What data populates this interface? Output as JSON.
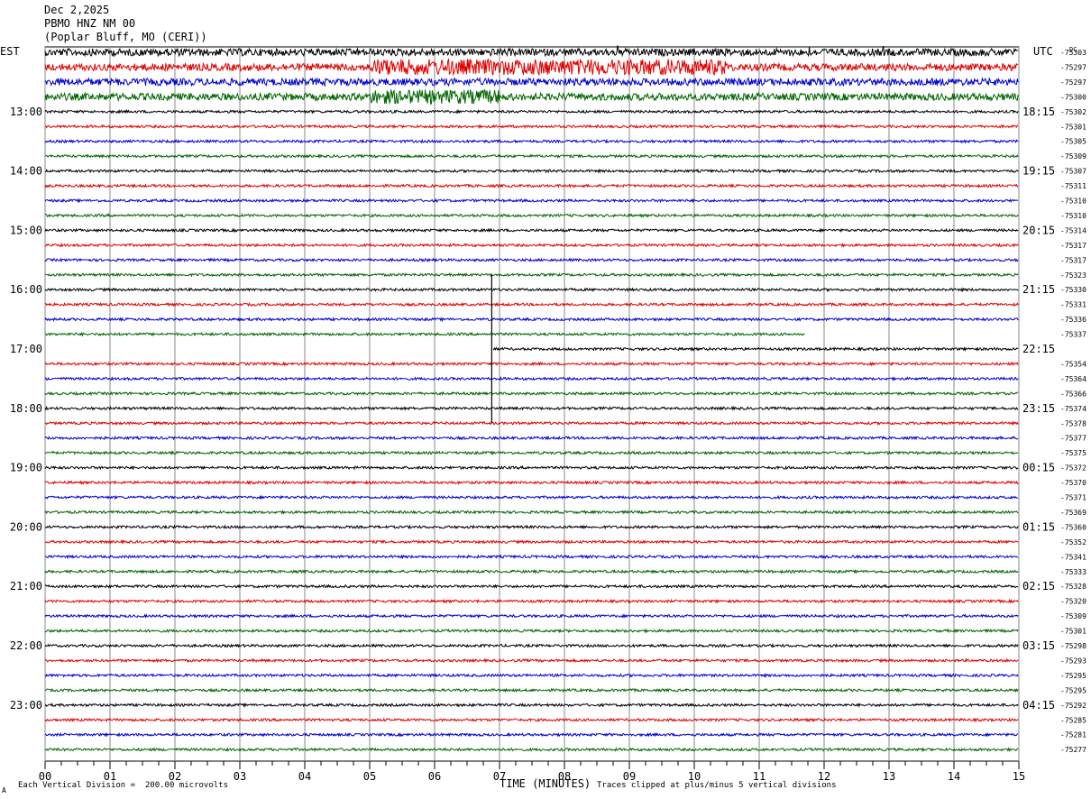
{
  "header": {
    "date": "Dec 2,2025",
    "station": "PBMO HNZ NM 00",
    "location": "(Poplar Bluff, MO (CERI))"
  },
  "labels": {
    "left_tz": "EST",
    "right_tz": "UTC",
    "dc": "DC"
  },
  "footer": {
    "scale": "Each Vertical Division =  200.00 microvolts",
    "clip": "Traces clipped at plus/minus 5 vertical divisions",
    "corner_mark": "A"
  },
  "colors": [
    "#000000",
    "#e00000",
    "#0000d0",
    "#006400"
  ],
  "chart_data": {
    "type": "line",
    "xlabel": "TIME (MINUTES)",
    "xlim": [
      0,
      15
    ],
    "x_ticks": [
      "00",
      "01",
      "02",
      "03",
      "04",
      "05",
      "06",
      "07",
      "08",
      "09",
      "10",
      "11",
      "12",
      "13",
      "14",
      "15"
    ],
    "left_hour_labels": [
      "13:00",
      "14:00",
      "15:00",
      "16:00",
      "17:00",
      "18:00",
      "19:00",
      "20:00",
      "21:00",
      "22:00",
      "23:00"
    ],
    "right_hour_labels": [
      "18:15",
      "19:15",
      "20:15",
      "21:15",
      "22:15",
      "23:15",
      "00:15",
      "01:15",
      "02:15",
      "03:15",
      "04:15"
    ],
    "dc_values": [
      "-75303",
      "-75297",
      "-75297",
      "-75300",
      "-75302",
      "-75301",
      "-75305",
      "-75309",
      "-75307",
      "-75311",
      "-75310",
      "-75310",
      "-75314",
      "-75317",
      "-75317",
      "-75323",
      "-75330",
      "-75331",
      "-75336",
      "-75337",
      "",
      "-75354",
      "-75364",
      "-75366",
      "-75374",
      "-75378",
      "-75377",
      "-75375",
      "-75372",
      "-75370",
      "-75371",
      "-75369",
      "-75360",
      "-75352",
      "-75341",
      "-75333",
      "-75328",
      "-75320",
      "-75309",
      "-75301",
      "-75298",
      "-75293",
      "-75295",
      "-75295",
      "-75292",
      "-75285",
      "-75281",
      "-75277"
    ],
    "trace_count": 48,
    "traces_per_hour": 4,
    "first_hour_offset": 0,
    "event_traces": [
      0,
      1,
      2,
      3
    ],
    "gap": {
      "trace": 19,
      "start_minute": 11.7,
      "end_trace": 20,
      "end_minute": 6.9
    },
    "spike": {
      "minute": 6.88,
      "from_trace": 15,
      "to_trace": 25
    }
  }
}
